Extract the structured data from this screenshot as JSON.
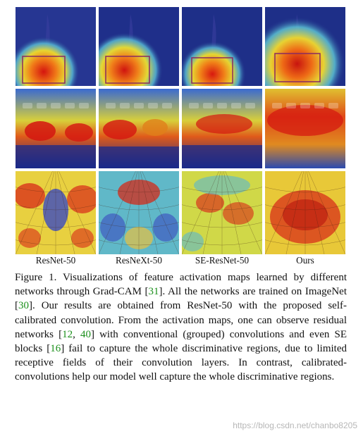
{
  "figure": {
    "columns": [
      {
        "label": "ResNet-50"
      },
      {
        "label": "ResNeXt-50"
      },
      {
        "label": "SE-ResNet-50"
      },
      {
        "label": "Ours"
      }
    ],
    "rows": [
      "woman-scene",
      "keyboard-scene",
      "web-scene"
    ]
  },
  "caption": {
    "p1": "Figure 1. Visualizations of feature activation maps learned by different networks through Grad-CAM [",
    "r1": "31",
    "p2": "].  All the networks are trained on ImageNet [",
    "r2": "30",
    "p3": "]. Our results are obtained from ResNet-50 with the proposed self-calibrated convolution.  From the activation maps, one can observe residual networks [",
    "r3": "12",
    "p4": ", ",
    "r4": "40",
    "p5": "] with conventional (grouped) convolutions and even SE blocks [",
    "r5": "16",
    "p6": "] fail to capture the whole discriminative regions, due to limited receptive fields of their convolution layers. In contrast, calibrated-convolutions help our model well capture the whole discriminative regions."
  },
  "watermark": "https://blog.csdn.net/chanbo8205",
  "colors": {
    "ref": "#1a8f1a",
    "cold": "#0a1a8a",
    "hot": "#d21a10"
  }
}
